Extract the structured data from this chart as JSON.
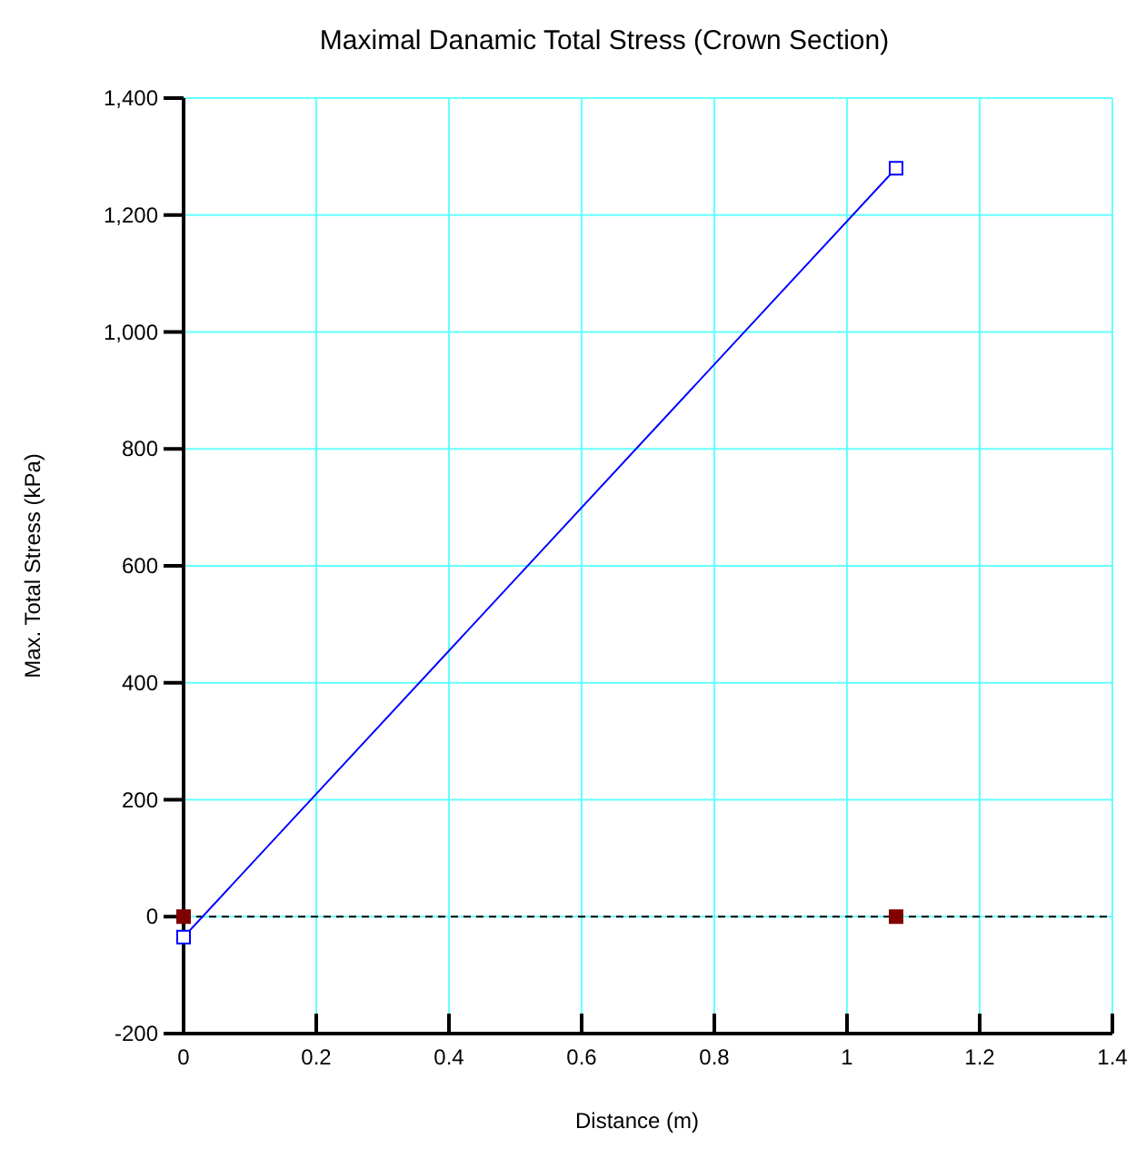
{
  "chart_data": {
    "type": "line",
    "title": "Maximal Danamic Total Stress (Crown Section)",
    "xlabel": "Distance (m)",
    "ylabel": "Max. Total Stress (kPa)",
    "xlim": [
      0,
      1.4
    ],
    "xticks": [
      0,
      0.2,
      0.4,
      0.6,
      0.8,
      1,
      1.2,
      1.4
    ],
    "ylim": [
      -200,
      1400
    ],
    "yticks": [
      -200,
      0,
      200,
      400,
      600,
      800,
      {
        "value": 1000,
        "label": "1,000"
      },
      {
        "value": 1200,
        "label": "1,200"
      },
      {
        "value": 1400,
        "label": "1,400"
      }
    ],
    "grid": true,
    "x": [
      0,
      1.074
    ],
    "series": [
      {
        "color": "#0000ff",
        "values": [
          -35,
          1280
        ],
        "marker": "square"
      },
      {
        "type": "scatter",
        "color": "#800000",
        "values": [
          0,
          0
        ],
        "marker": "square"
      }
    ],
    "ref_lines": [
      {
        "axis": "y",
        "value": 0,
        "color": "#000000",
        "line_style": "dashed"
      }
    ]
  }
}
